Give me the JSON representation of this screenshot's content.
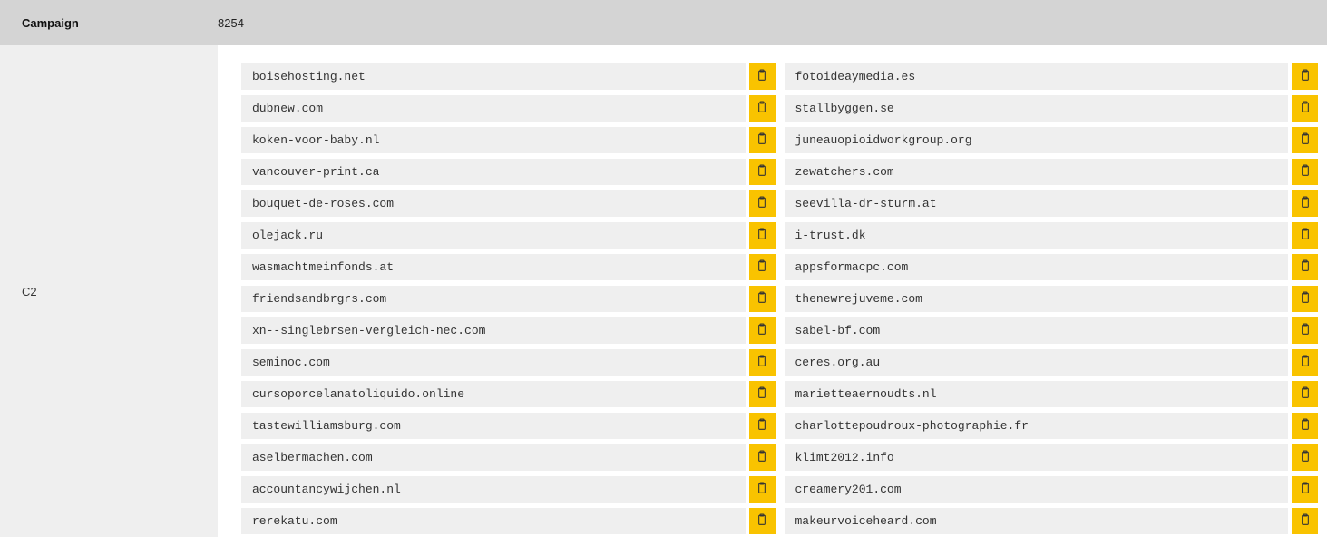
{
  "header": {
    "label": "Campaign",
    "value": "8254"
  },
  "side": {
    "label": "C2"
  },
  "colors": {
    "header_bg": "#d4d4d4",
    "side_bg": "#efefef",
    "item_bg": "#efefef",
    "copy_bg": "#f9c300",
    "text": "#333333"
  },
  "columns": [
    [
      "boisehosting.net",
      "dubnew.com",
      "koken-voor-baby.nl",
      "vancouver-print.ca",
      "bouquet-de-roses.com",
      "olejack.ru",
      "wasmachtmeinfonds.at",
      "friendsandbrgrs.com",
      "xn--singlebrsen-vergleich-nec.com",
      "seminoc.com",
      "cursoporcelanatoliquido.online",
      "tastewilliamsburg.com",
      "aselbermachen.com",
      "accountancywijchen.nl",
      "rerekatu.com"
    ],
    [
      "fotoideaymedia.es",
      "stallbyggen.se",
      "juneauopioidworkgroup.org",
      "zewatchers.com",
      "seevilla-dr-sturm.at",
      "i-trust.dk",
      "appsformacpc.com",
      "thenewrejuveme.com",
      "sabel-bf.com",
      "ceres.org.au",
      "marietteaernoudts.nl",
      "charlottepoudroux-photographie.fr",
      "klimt2012.info",
      "creamery201.com",
      "makeurvoiceheard.com"
    ]
  ]
}
